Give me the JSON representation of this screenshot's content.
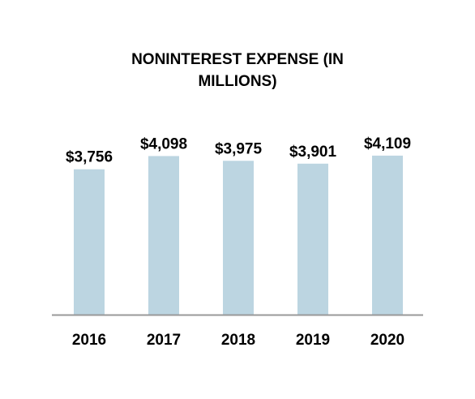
{
  "chart_data": {
    "type": "bar",
    "title_lines": [
      "NONINTEREST EXPENSE (IN",
      "MILLIONS)"
    ],
    "categories": [
      "2016",
      "2017",
      "2018",
      "2019",
      "2020"
    ],
    "values": [
      3756,
      4098,
      3975,
      3901,
      4109
    ],
    "value_labels": [
      "$3,756",
      "$4,098",
      "$3,975",
      "$3,901",
      "$4,109"
    ],
    "ylim": [
      0,
      4400
    ],
    "grid": false,
    "bar_color": "#bcd5e1",
    "axis_color": "#999999"
  }
}
